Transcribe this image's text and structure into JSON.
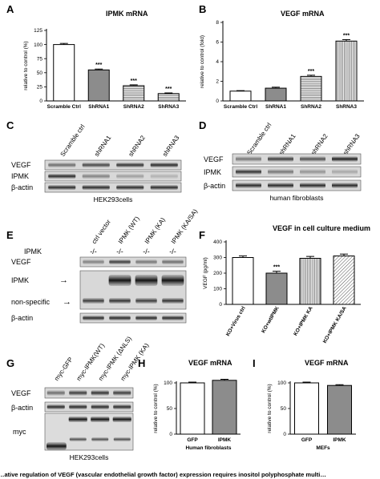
{
  "panel_labels": {
    "A": "A",
    "B": "B",
    "C": "C",
    "D": "D",
    "E": "E",
    "F": "F",
    "G": "G",
    "H": "H",
    "I": "I"
  },
  "chart_data": [
    {
      "panel": "A",
      "type": "bar",
      "title": "IPMK mRNA",
      "ylabel": "relative to control (%)",
      "ylim": [
        0,
        125
      ],
      "yticks": [
        "0",
        "25",
        "50",
        "75",
        "100",
        "125"
      ],
      "categories": [
        "Scramble Ctrl",
        "ShRNA1",
        "ShRNA2",
        "ShRNA3"
      ],
      "values": [
        100,
        55,
        27,
        13
      ],
      "errors": [
        2,
        1.5,
        1.5,
        1.2
      ],
      "significance": [
        "",
        "***",
        "***",
        "***"
      ],
      "fills": [
        "white",
        "grey",
        "hlines",
        "hlines"
      ]
    },
    {
      "panel": "B",
      "type": "bar",
      "title": "VEGF mRNA",
      "ylabel": "relative to control (fold)",
      "ylim": [
        0,
        8
      ],
      "yticks": [
        "0",
        "2",
        "4",
        "6",
        "8"
      ],
      "categories": [
        "Scramble Ctrl",
        "ShRNA1",
        "ShRNA2",
        "ShRNA3"
      ],
      "values": [
        1.0,
        1.3,
        2.5,
        6.1
      ],
      "errors": [
        0.05,
        0.1,
        0.12,
        0.15
      ],
      "significance": [
        "",
        "",
        "***",
        "***"
      ],
      "fills": [
        "white",
        "grey",
        "hlines",
        "vlines"
      ]
    },
    {
      "panel": "F",
      "type": "bar",
      "title": "VEGF in cell culture medium",
      "ylabel": "VEGF (pg/ml)",
      "ylim": [
        0,
        400
      ],
      "yticks": [
        "0",
        "100",
        "200",
        "300",
        "400"
      ],
      "categories": [
        "KO+Virus ctrl",
        "KO+wtIPMK",
        "KO+IPMK KA",
        "KO+IPMK KA/SA"
      ],
      "values": [
        300,
        200,
        295,
        310
      ],
      "errors": [
        10,
        12,
        12,
        12
      ],
      "significance": [
        "",
        "***",
        "",
        ""
      ],
      "fills": [
        "white",
        "grey",
        "vlines",
        "diag"
      ]
    },
    {
      "panel": "H",
      "type": "bar",
      "title": "VEGF mRNA",
      "ylabel": "relative to control (%)",
      "ylim": [
        0,
        100
      ],
      "yticks": [
        "0",
        "50",
        "100"
      ],
      "categories": [
        "GFP",
        "IPMK"
      ],
      "values": [
        100,
        105
      ],
      "errors": [
        1.5,
        2
      ],
      "significance": [
        "",
        ""
      ],
      "fills": [
        "white",
        "grey"
      ],
      "xlabel": "Human fibroblasts"
    },
    {
      "panel": "I",
      "type": "bar",
      "title": "VEGF mRNA",
      "ylabel": "relative to control (%)",
      "ylim": [
        0,
        100
      ],
      "yticks": [
        "0",
        "50",
        "100"
      ],
      "categories": [
        "GFP",
        "IPMK"
      ],
      "values": [
        100,
        95
      ],
      "errors": [
        1.5,
        1.5
      ],
      "significance": [
        "",
        ""
      ],
      "fills": [
        "white",
        "grey"
      ],
      "xlabel": "MEFs"
    }
  ],
  "blots": {
    "C": {
      "lanes": [
        "Scramble ctrl",
        "shRNA1",
        "shRNA2",
        "shRNA3"
      ],
      "rows": [
        "VEGF",
        "IPMK",
        "β-actin"
      ],
      "caption": "HEK293cells"
    },
    "D": {
      "lanes": [
        "Scramble ctrl",
        "shRNA1",
        "shRNA2",
        "shRNA3"
      ],
      "rows": [
        "VEGF",
        "IPMK",
        "β-actin"
      ],
      "caption": "human fibroblasts"
    },
    "E": {
      "lanes": [
        "ctrl vector",
        "IPMK (WT)",
        "IPMK (KA)",
        "IPMK (KA/SA)"
      ],
      "genotype_label": "IPMK",
      "genotypes": [
        "-/-",
        "-/-",
        "-/-",
        "-/-"
      ],
      "rows": [
        "VEGF",
        "IPMK",
        "non-specific",
        "β-actin"
      ]
    },
    "G": {
      "lanes": [
        "myc-GFP",
        "myc-IPMK(WT)",
        "myc-IPMK (ΔNLS)",
        "myc-IPMK (KA)"
      ],
      "rows": [
        "VEGF",
        "β-actin",
        "myc"
      ],
      "caption": "HEK293cells"
    }
  },
  "bottom_caption": "…ative regulation of VEGF (vascular endothelial growth factor) expression requires inositol polyphosphate multi…"
}
